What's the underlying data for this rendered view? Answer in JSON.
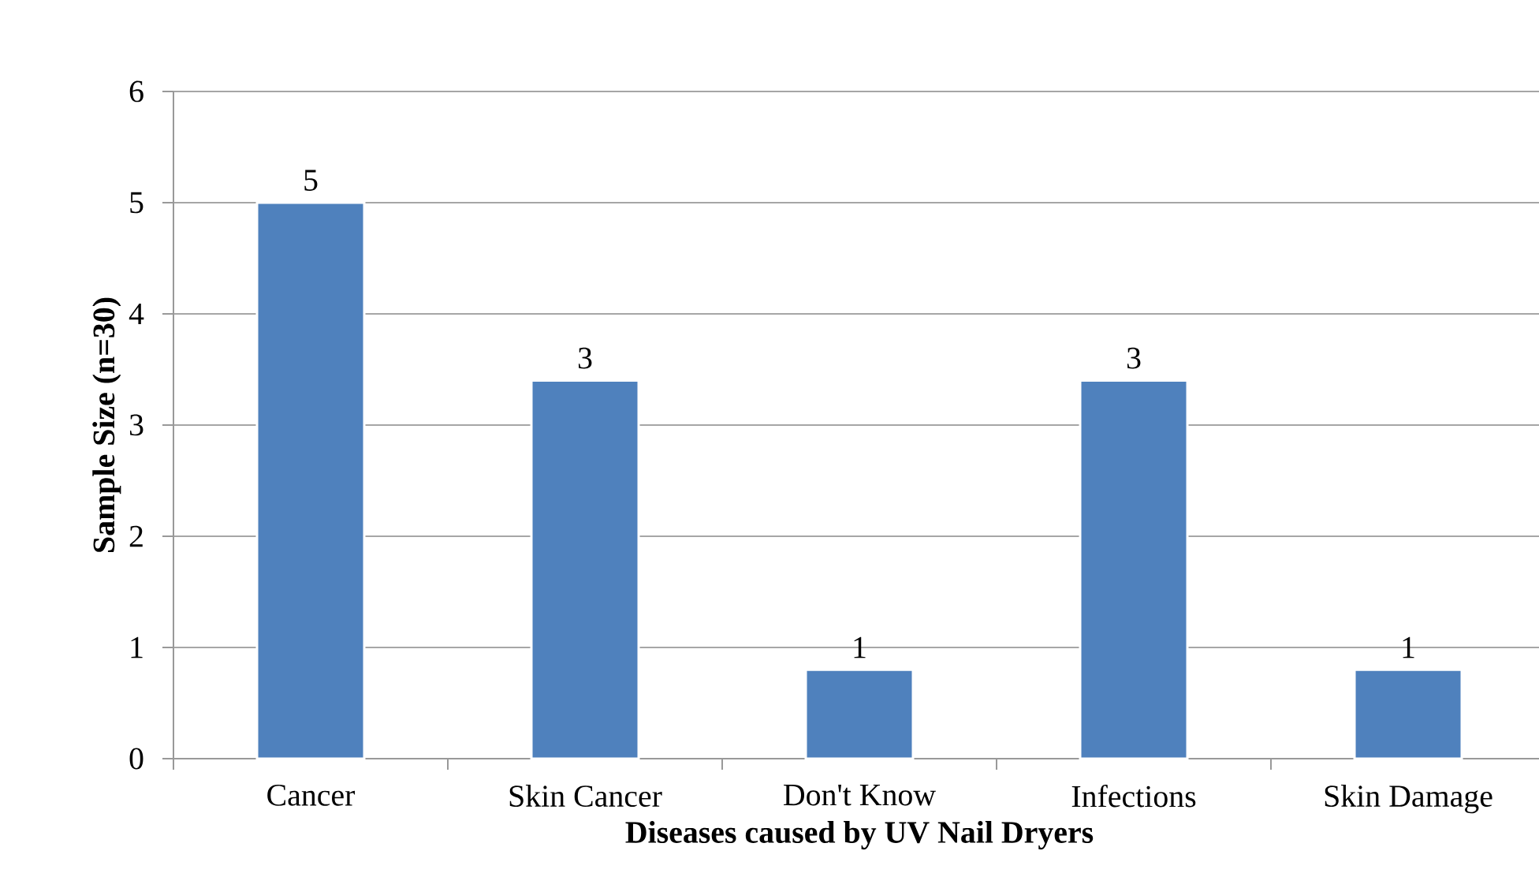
{
  "chart_data": {
    "type": "bar",
    "xlabel": "Diseases caused by UV Nail Dryers",
    "ylabel": "Sample Size (n=30)",
    "categories": [
      "Cancer",
      "Skin Cancer",
      "Don't Know",
      "Infections",
      "Skin Damage"
    ],
    "values": [
      5,
      3.4,
      0.8,
      3.4,
      0.8
    ],
    "value_labels": [
      "5",
      "3",
      "1",
      "3",
      "1"
    ],
    "color": "#4f81bd",
    "ylim": [
      0,
      6
    ],
    "yticks": [
      0,
      1,
      2,
      3,
      4,
      5,
      6
    ],
    "grid": "y"
  }
}
